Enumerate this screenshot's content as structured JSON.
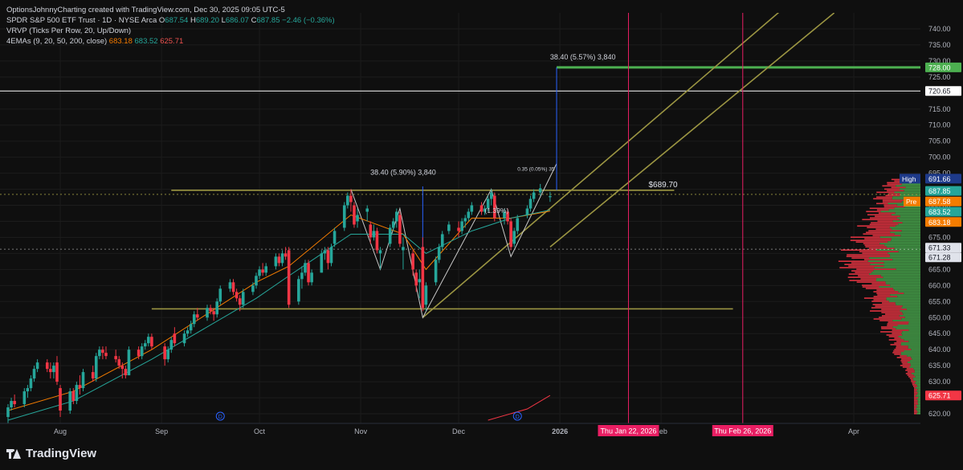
{
  "header": {
    "created_line": "OptionsJohnnyCharting created with TradingView.com, Dec 30, 2025 09:05 UTC-5",
    "symbol": "SPDR S&P 500 ETF Trust · 1D · NYSE Arca",
    "ohlc_o_label": "O",
    "ohlc_o": "687.54",
    "ohlc_h_label": "H",
    "ohlc_h": "689.20",
    "ohlc_l_label": "L",
    "ohlc_l": "686.07",
    "ohlc_c_label": "C",
    "ohlc_c": "687.85",
    "change": "−2.46 (−0.36%)",
    "vrvp": "VRVP (Ticks Per Row, 20, Up/Down)",
    "ema_label": "4EMAs (9, 20, 50, 200, close)",
    "ema_values": [
      "683.18",
      "683.52",
      "625.71"
    ]
  },
  "brand": {
    "name": "TradingView"
  },
  "colors": {
    "background": "#0f0f0f",
    "up": "#26a69a",
    "down": "#f23645",
    "grid": "#1c1c1c",
    "olive": "#9b9542",
    "green_line": "#4caf50",
    "magenta": "#e91e63",
    "measure_blue": "#2962ff"
  },
  "chart_data": {
    "type": "candlestick",
    "title": "SPDR S&P 500 ETF Trust · 1D · NYSE Arca",
    "ylim": [
      617,
      745
    ],
    "y_ticks": [
      620,
      625,
      630,
      635,
      640,
      645,
      650,
      655,
      660,
      665,
      670,
      675,
      680,
      685,
      690,
      695,
      700,
      705,
      710,
      715,
      720,
      725,
      730,
      735,
      740
    ],
    "x_ticks": [
      {
        "date": "2025-08-01",
        "label": "Aug"
      },
      {
        "date": "2025-09-01",
        "label": "Sep"
      },
      {
        "date": "2025-10-01",
        "label": "Oct"
      },
      {
        "date": "2025-11-01",
        "label": "Nov"
      },
      {
        "date": "2025-12-01",
        "label": "Dec"
      },
      {
        "date": "2026-01-01",
        "label": "2026"
      },
      {
        "date": "2026-02-01",
        "label": "Feb"
      },
      {
        "date": "2026-04-01",
        "label": "Apr"
      }
    ],
    "date_tags": [
      {
        "date": "2026-01-22",
        "label": "Thu Jan 22, 2026"
      },
      {
        "date": "2026-02-26",
        "label": "Thu Feb 26, 2026"
      }
    ],
    "candles": [
      {
        "date": "2025-07-16",
        "o": 619,
        "h": 623,
        "l": 617,
        "c": 622
      },
      {
        "date": "2025-07-17",
        "o": 622,
        "h": 625,
        "l": 621,
        "c": 624
      },
      {
        "date": "2025-07-18",
        "o": 624,
        "h": 626,
        "l": 622,
        "c": 623
      },
      {
        "date": "2025-07-21",
        "o": 623,
        "h": 628,
        "l": 622,
        "c": 627
      },
      {
        "date": "2025-07-22",
        "o": 627,
        "h": 629,
        "l": 625,
        "c": 628
      },
      {
        "date": "2025-07-23",
        "o": 628,
        "h": 632,
        "l": 627,
        "c": 631
      },
      {
        "date": "2025-07-24",
        "o": 631,
        "h": 635,
        "l": 630,
        "c": 634
      },
      {
        "date": "2025-07-25",
        "o": 634,
        "h": 637,
        "l": 633,
        "c": 636
      },
      {
        "date": "2025-07-28",
        "o": 636,
        "h": 637,
        "l": 633,
        "c": 634
      },
      {
        "date": "2025-07-29",
        "o": 634,
        "h": 636,
        "l": 631,
        "c": 633
      },
      {
        "date": "2025-07-30",
        "o": 633,
        "h": 636,
        "l": 631,
        "c": 635
      },
      {
        "date": "2025-07-31",
        "o": 636,
        "h": 638,
        "l": 629,
        "c": 630
      },
      {
        "date": "2025-08-01",
        "o": 628,
        "h": 629,
        "l": 619,
        "c": 621
      },
      {
        "date": "2025-08-04",
        "o": 621,
        "h": 628,
        "l": 620,
        "c": 627
      },
      {
        "date": "2025-08-05",
        "o": 627,
        "h": 628,
        "l": 623,
        "c": 624
      },
      {
        "date": "2025-08-06",
        "o": 624,
        "h": 630,
        "l": 623,
        "c": 629
      },
      {
        "date": "2025-08-07",
        "o": 629,
        "h": 632,
        "l": 626,
        "c": 628
      },
      {
        "date": "2025-08-08",
        "o": 628,
        "h": 634,
        "l": 627,
        "c": 633
      },
      {
        "date": "2025-08-11",
        "o": 633,
        "h": 635,
        "l": 630,
        "c": 631
      },
      {
        "date": "2025-08-12",
        "o": 631,
        "h": 639,
        "l": 630,
        "c": 638
      },
      {
        "date": "2025-08-13",
        "o": 638,
        "h": 641,
        "l": 637,
        "c": 640
      },
      {
        "date": "2025-08-14",
        "o": 640,
        "h": 641,
        "l": 637,
        "c": 639
      },
      {
        "date": "2025-08-15",
        "o": 639,
        "h": 641,
        "l": 637,
        "c": 638
      },
      {
        "date": "2025-08-18",
        "o": 638,
        "h": 640,
        "l": 636,
        "c": 637
      },
      {
        "date": "2025-08-19",
        "o": 637,
        "h": 638,
        "l": 634,
        "c": 635
      },
      {
        "date": "2025-08-20",
        "o": 635,
        "h": 636,
        "l": 631,
        "c": 634
      },
      {
        "date": "2025-08-21",
        "o": 634,
        "h": 635,
        "l": 631,
        "c": 632
      },
      {
        "date": "2025-08-22",
        "o": 632,
        "h": 641,
        "l": 632,
        "c": 640
      },
      {
        "date": "2025-08-25",
        "o": 640,
        "h": 641,
        "l": 637,
        "c": 638
      },
      {
        "date": "2025-08-26",
        "o": 638,
        "h": 642,
        "l": 637,
        "c": 641
      },
      {
        "date": "2025-08-27",
        "o": 641,
        "h": 643,
        "l": 640,
        "c": 642
      },
      {
        "date": "2025-08-28",
        "o": 642,
        "h": 645,
        "l": 641,
        "c": 644
      },
      {
        "date": "2025-08-29",
        "o": 644,
        "h": 645,
        "l": 640,
        "c": 641
      },
      {
        "date": "2025-09-02",
        "o": 641,
        "h": 642,
        "l": 635,
        "c": 637
      },
      {
        "date": "2025-09-03",
        "o": 637,
        "h": 641,
        "l": 636,
        "c": 640
      },
      {
        "date": "2025-09-04",
        "o": 640,
        "h": 644,
        "l": 639,
        "c": 643
      },
      {
        "date": "2025-09-05",
        "o": 645,
        "h": 647,
        "l": 641,
        "c": 642
      },
      {
        "date": "2025-09-08",
        "o": 642,
        "h": 646,
        "l": 641,
        "c": 645
      },
      {
        "date": "2025-09-09",
        "o": 645,
        "h": 647,
        "l": 644,
        "c": 646
      },
      {
        "date": "2025-09-10",
        "o": 646,
        "h": 649,
        "l": 645,
        "c": 648
      },
      {
        "date": "2025-09-11",
        "o": 648,
        "h": 652,
        "l": 647,
        "c": 651
      },
      {
        "date": "2025-09-12",
        "o": 651,
        "h": 653,
        "l": 649,
        "c": 650
      },
      {
        "date": "2025-09-15",
        "o": 650,
        "h": 654,
        "l": 649,
        "c": 653
      },
      {
        "date": "2025-09-16",
        "o": 653,
        "h": 654,
        "l": 651,
        "c": 652
      },
      {
        "date": "2025-09-17",
        "o": 652,
        "h": 653,
        "l": 649,
        "c": 651
      },
      {
        "date": "2025-09-18",
        "o": 651,
        "h": 656,
        "l": 650,
        "c": 655
      },
      {
        "date": "2025-09-19",
        "o": 655,
        "h": 660,
        "l": 654,
        "c": 659
      },
      {
        "date": "2025-09-22",
        "o": 659,
        "h": 662,
        "l": 658,
        "c": 661
      },
      {
        "date": "2025-09-23",
        "o": 661,
        "h": 662,
        "l": 657,
        "c": 658
      },
      {
        "date": "2025-09-24",
        "o": 658,
        "h": 659,
        "l": 655,
        "c": 656
      },
      {
        "date": "2025-09-25",
        "o": 656,
        "h": 657,
        "l": 652,
        "c": 654
      },
      {
        "date": "2025-09-26",
        "o": 654,
        "h": 659,
        "l": 653,
        "c": 658
      },
      {
        "date": "2025-09-29",
        "o": 658,
        "h": 661,
        "l": 657,
        "c": 660
      },
      {
        "date": "2025-09-30",
        "o": 660,
        "h": 664,
        "l": 659,
        "c": 663
      },
      {
        "date": "2025-10-01",
        "o": 663,
        "h": 666,
        "l": 662,
        "c": 665
      },
      {
        "date": "2025-10-02",
        "o": 665,
        "h": 667,
        "l": 663,
        "c": 664
      },
      {
        "date": "2025-10-03",
        "o": 664,
        "h": 667,
        "l": 663,
        "c": 666
      },
      {
        "date": "2025-10-06",
        "o": 666,
        "h": 670,
        "l": 665,
        "c": 669
      },
      {
        "date": "2025-10-07",
        "o": 669,
        "h": 670,
        "l": 666,
        "c": 667
      },
      {
        "date": "2025-10-08",
        "o": 667,
        "h": 671,
        "l": 666,
        "c": 670
      },
      {
        "date": "2025-10-09",
        "o": 670,
        "h": 672,
        "l": 668,
        "c": 669
      },
      {
        "date": "2025-10-10",
        "o": 671,
        "h": 672,
        "l": 653,
        "c": 654
      },
      {
        "date": "2025-10-13",
        "o": 655,
        "h": 663,
        "l": 654,
        "c": 662
      },
      {
        "date": "2025-10-14",
        "o": 662,
        "h": 666,
        "l": 659,
        "c": 664
      },
      {
        "date": "2025-10-15",
        "o": 664,
        "h": 668,
        "l": 663,
        "c": 667
      },
      {
        "date": "2025-10-16",
        "o": 667,
        "h": 668,
        "l": 660,
        "c": 661
      },
      {
        "date": "2025-10-17",
        "o": 661,
        "h": 665,
        "l": 660,
        "c": 664
      },
      {
        "date": "2025-10-20",
        "o": 664,
        "h": 671,
        "l": 664,
        "c": 670
      },
      {
        "date": "2025-10-21",
        "o": 670,
        "h": 672,
        "l": 668,
        "c": 671
      },
      {
        "date": "2025-10-22",
        "o": 671,
        "h": 672,
        "l": 665,
        "c": 667
      },
      {
        "date": "2025-10-23",
        "o": 667,
        "h": 673,
        "l": 666,
        "c": 672
      },
      {
        "date": "2025-10-24",
        "o": 673,
        "h": 678,
        "l": 672,
        "c": 677
      },
      {
        "date": "2025-10-27",
        "o": 678,
        "h": 686,
        "l": 677,
        "c": 685
      },
      {
        "date": "2025-10-28",
        "o": 685,
        "h": 689,
        "l": 684,
        "c": 688
      },
      {
        "date": "2025-10-29",
        "o": 688,
        "h": 690,
        "l": 683,
        "c": 686
      },
      {
        "date": "2025-10-30",
        "o": 685,
        "h": 686,
        "l": 678,
        "c": 679
      },
      {
        "date": "2025-10-31",
        "o": 680,
        "h": 684,
        "l": 678,
        "c": 682
      },
      {
        "date": "2025-11-03",
        "o": 683,
        "h": 685,
        "l": 680,
        "c": 684
      },
      {
        "date": "2025-11-04",
        "o": 679,
        "h": 680,
        "l": 673,
        "c": 675
      },
      {
        "date": "2025-11-05",
        "o": 675,
        "h": 679,
        "l": 674,
        "c": 677
      },
      {
        "date": "2025-11-06",
        "o": 677,
        "h": 678,
        "l": 670,
        "c": 671
      },
      {
        "date": "2025-11-07",
        "o": 670,
        "h": 672,
        "l": 665,
        "c": 671
      },
      {
        "date": "2025-11-10",
        "o": 673,
        "h": 679,
        "l": 672,
        "c": 678
      },
      {
        "date": "2025-11-11",
        "o": 678,
        "h": 681,
        "l": 677,
        "c": 680
      },
      {
        "date": "2025-11-12",
        "o": 680,
        "h": 684,
        "l": 678,
        "c": 683
      },
      {
        "date": "2025-11-13",
        "o": 682,
        "h": 683,
        "l": 672,
        "c": 673
      },
      {
        "date": "2025-11-14",
        "o": 671,
        "h": 675,
        "l": 665,
        "c": 672
      },
      {
        "date": "2025-11-17",
        "o": 670,
        "h": 671,
        "l": 663,
        "c": 665
      },
      {
        "date": "2025-11-18",
        "o": 664,
        "h": 665,
        "l": 658,
        "c": 660
      },
      {
        "date": "2025-11-19",
        "o": 661,
        "h": 665,
        "l": 656,
        "c": 662
      },
      {
        "date": "2025-11-20",
        "o": 672,
        "h": 675,
        "l": 652,
        "c": 653
      },
      {
        "date": "2025-11-21",
        "o": 654,
        "h": 661,
        "l": 652,
        "c": 660
      },
      {
        "date": "2025-11-24",
        "o": 661,
        "h": 669,
        "l": 660,
        "c": 668
      },
      {
        "date": "2025-11-25",
        "o": 668,
        "h": 673,
        "l": 667,
        "c": 672
      },
      {
        "date": "2025-11-26",
        "o": 672,
        "h": 677,
        "l": 671,
        "c": 676
      },
      {
        "date": "2025-11-28",
        "o": 677,
        "h": 680,
        "l": 676,
        "c": 679
      },
      {
        "date": "2025-12-01",
        "o": 678,
        "h": 680,
        "l": 675,
        "c": 677
      },
      {
        "date": "2025-12-02",
        "o": 677,
        "h": 681,
        "l": 676,
        "c": 680
      },
      {
        "date": "2025-12-03",
        "o": 680,
        "h": 682,
        "l": 678,
        "c": 681
      },
      {
        "date": "2025-12-04",
        "o": 681,
        "h": 684,
        "l": 680,
        "c": 683
      },
      {
        "date": "2025-12-05",
        "o": 683,
        "h": 686,
        "l": 682,
        "c": 685
      },
      {
        "date": "2025-12-08",
        "o": 685,
        "h": 686,
        "l": 682,
        "c": 683
      },
      {
        "date": "2025-12-09",
        "o": 683,
        "h": 685,
        "l": 682,
        "c": 684
      },
      {
        "date": "2025-12-10",
        "o": 684,
        "h": 688,
        "l": 683,
        "c": 687
      },
      {
        "date": "2025-12-11",
        "o": 687,
        "h": 690,
        "l": 685,
        "c": 689
      },
      {
        "date": "2025-12-12",
        "o": 688,
        "h": 689,
        "l": 680,
        "c": 681
      },
      {
        "date": "2025-12-15",
        "o": 681,
        "h": 684,
        "l": 679,
        "c": 683
      },
      {
        "date": "2025-12-16",
        "o": 683,
        "h": 684,
        "l": 679,
        "c": 680
      },
      {
        "date": "2025-12-17",
        "o": 680,
        "h": 681,
        "l": 671,
        "c": 672
      },
      {
        "date": "2025-12-18",
        "o": 673,
        "h": 678,
        "l": 672,
        "c": 677
      },
      {
        "date": "2025-12-19",
        "o": 677,
        "h": 682,
        "l": 676,
        "c": 681
      },
      {
        "date": "2025-12-22",
        "o": 682,
        "h": 685,
        "l": 681,
        "c": 684
      },
      {
        "date": "2025-12-23",
        "o": 684,
        "h": 688,
        "l": 683,
        "c": 687
      },
      {
        "date": "2025-12-24",
        "o": 687,
        "h": 690,
        "l": 686,
        "c": 689
      },
      {
        "date": "2025-12-26",
        "o": 689,
        "h": 691.66,
        "l": 688,
        "c": 690.3
      },
      {
        "date": "2025-12-29",
        "o": 687.54,
        "h": 689.2,
        "l": 686.07,
        "c": 687.85
      }
    ],
    "ema_series": [
      {
        "name": "EMA 9",
        "color": "#f57c00",
        "points": [
          [
            "2025-07-16",
            621
          ],
          [
            "2025-08-05",
            627
          ],
          [
            "2025-08-29",
            640
          ],
          [
            "2025-09-30",
            661
          ],
          [
            "2025-10-10",
            666
          ],
          [
            "2025-10-29",
            682
          ],
          [
            "2025-11-14",
            676
          ],
          [
            "2025-11-21",
            665
          ],
          [
            "2025-12-05",
            681
          ],
          [
            "2025-12-17",
            681
          ],
          [
            "2025-12-29",
            683.18
          ]
        ]
      },
      {
        "name": "EMA 20",
        "color": "#26a69a",
        "points": [
          [
            "2025-07-16",
            618
          ],
          [
            "2025-08-05",
            624
          ],
          [
            "2025-08-29",
            637
          ],
          [
            "2025-09-30",
            656
          ],
          [
            "2025-10-10",
            663
          ],
          [
            "2025-10-29",
            676
          ],
          [
            "2025-11-14",
            676
          ],
          [
            "2025-11-21",
            670
          ],
          [
            "2025-12-05",
            677
          ],
          [
            "2025-12-17",
            681
          ],
          [
            "2025-12-29",
            683.52
          ]
        ]
      },
      {
        "name": "EMA 200",
        "color": "#f23645",
        "points": [
          [
            "2025-12-10",
            618
          ],
          [
            "2025-12-22",
            621.5
          ],
          [
            "2025-12-29",
            625.71
          ]
        ]
      }
    ],
    "horizontal_levels": [
      {
        "price": 728.0,
        "label": "728.00",
        "color": "#4caf50"
      },
      {
        "price": 720.65,
        "label": "720.65",
        "color": "#ffffff"
      },
      {
        "price": 689.7,
        "label": "$689.70",
        "color": "#9b9542"
      },
      {
        "price": 652.7,
        "color": "#9b9542"
      },
      {
        "price": 671.33,
        "label": "671.33",
        "color": "#9e9e9e"
      }
    ],
    "channel": [
      {
        "from": [
          "2025-11-20",
          650
        ],
        "to": [
          "2026-03-10",
          746
        ]
      },
      {
        "from": [
          "2025-12-29",
          672
        ],
        "to": [
          "2026-03-26",
          745
        ]
      }
    ],
    "measure_labels": [
      "38.40 (5.57%) 3,840",
      "38.40 (5.90%) 3,840",
      "0.35 (0.05%) 35",
      "(1.39%)"
    ],
    "price_tags": [
      {
        "label": "High",
        "value": "691.66",
        "color": "#1e3a8a"
      },
      {
        "value": "687.85",
        "color": "#26a69a"
      },
      {
        "label": "Pre",
        "value": "687.58",
        "color": "#f57c00"
      },
      {
        "value": "683.52",
        "color": "#26a69a"
      },
      {
        "value": "683.18",
        "color": "#f57c00"
      },
      {
        "value": "671.33",
        "color": "#e0e3eb"
      },
      {
        "value": "671.28",
        "color": "#e0e3eb"
      },
      {
        "value": "625.71",
        "color": "#f23645"
      }
    ],
    "grid": true
  }
}
